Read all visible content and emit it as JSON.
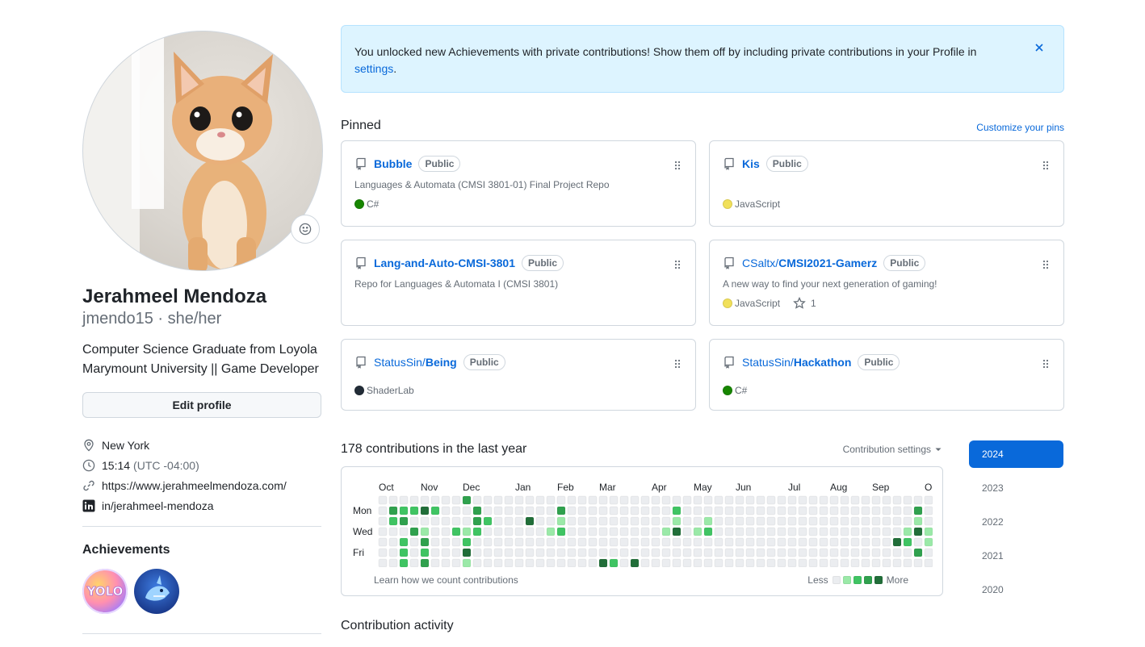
{
  "profile": {
    "name": "Jerahmeel Mendoza",
    "login": "jmendo15",
    "pronouns": "she/her",
    "bio": "Computer Science Graduate from Loyola Marymount University || Game Developer",
    "edit_label": "Edit profile",
    "location": "New York",
    "local_time": "15:14",
    "timezone": "(UTC -04:00)",
    "website": "https://www.jerahmeelmendoza.com/",
    "linkedin": "in/jerahmeel-mendoza",
    "achievements_title": "Achievements",
    "badges": [
      "yolo",
      "pull-shark"
    ]
  },
  "flash": {
    "message": "You unlocked new Achievements with private contributions! Show them off by including private contributions in your Profile in",
    "link": "settings",
    "suffix": "."
  },
  "pinned": {
    "title": "Pinned",
    "customize": "Customize your pins",
    "items": [
      {
        "owner": "",
        "name": "Bubble",
        "visibility": "Public",
        "description": "Languages & Automata (CMSI 3801-01) Final Project Repo",
        "language": "C#",
        "lang_color": "#178600",
        "stars": ""
      },
      {
        "owner": "",
        "name": "Kis",
        "visibility": "Public",
        "description": "",
        "language": "JavaScript",
        "lang_color": "#f1e05a",
        "stars": ""
      },
      {
        "owner": "",
        "name": "Lang-and-Auto-CMSI-3801",
        "visibility": "Public",
        "description": "Repo for Languages & Automata I (CMSI 3801)",
        "language": "",
        "lang_color": "",
        "stars": ""
      },
      {
        "owner": "CSaltx/",
        "name": "CMSI2021-Gamerz",
        "visibility": "Public",
        "description": "A new way to find your next generation of gaming!",
        "language": "JavaScript",
        "lang_color": "#f1e05a",
        "stars": "1"
      },
      {
        "owner": "StatusSin/",
        "name": "Being",
        "visibility": "Public",
        "description": "",
        "language": "ShaderLab",
        "lang_color": "#222c37",
        "stars": ""
      },
      {
        "owner": "StatusSin/",
        "name": "Hackathon",
        "visibility": "Public",
        "description": "",
        "language": "C#",
        "lang_color": "#178600",
        "stars": ""
      }
    ]
  },
  "contributions": {
    "title": "178 contributions in the last year",
    "settings_label": "Contribution settings",
    "months": [
      "Oct",
      "Nov",
      "Dec",
      "Jan",
      "Feb",
      "Mar",
      "Apr",
      "May",
      "Jun",
      "Jul",
      "Aug",
      "Sep",
      "Oct"
    ],
    "days": [
      "Mon",
      "Wed",
      "Fri"
    ],
    "learn_label": "Learn how we count contributions",
    "less_label": "Less",
    "more_label": "More",
    "colors": [
      "#ebedf0",
      "#9be9a8",
      "#40c463",
      "#30a14e",
      "#216e39"
    ],
    "levels": [
      [
        0,
        0,
        0,
        0,
        0,
        0,
        0
      ],
      [
        0,
        3,
        2,
        0,
        0,
        0,
        0
      ],
      [
        0,
        2,
        3,
        0,
        2,
        2,
        2
      ],
      [
        0,
        2,
        0,
        3,
        0,
        0,
        0
      ],
      [
        0,
        4,
        0,
        1,
        3,
        2,
        3
      ],
      [
        0,
        2,
        0,
        0,
        0,
        0,
        0
      ],
      [
        0,
        0,
        0,
        0,
        0,
        0,
        0
      ],
      [
        0,
        0,
        0,
        2,
        0,
        0,
        0
      ],
      [
        3,
        0,
        0,
        1,
        2,
        4,
        1
      ],
      [
        0,
        3,
        3,
        2,
        0,
        0,
        0
      ],
      [
        0,
        0,
        2,
        0,
        0,
        0,
        0
      ],
      [
        0,
        0,
        0,
        0,
        0,
        0,
        0
      ],
      [
        0,
        0,
        0,
        0,
        0,
        0,
        0
      ],
      [
        0,
        0,
        0,
        0,
        0,
        0,
        0
      ],
      [
        0,
        0,
        4,
        0,
        0,
        0,
        0
      ],
      [
        0,
        0,
        0,
        0,
        0,
        0,
        0
      ],
      [
        0,
        0,
        0,
        1,
        0,
        0,
        0
      ],
      [
        0,
        3,
        1,
        2,
        0,
        0,
        0
      ],
      [
        0,
        0,
        0,
        0,
        0,
        0,
        0
      ],
      [
        0,
        0,
        0,
        0,
        0,
        0,
        0
      ],
      [
        0,
        0,
        0,
        0,
        0,
        0,
        0
      ],
      [
        0,
        0,
        0,
        0,
        0,
        0,
        4
      ],
      [
        0,
        0,
        0,
        0,
        0,
        0,
        2
      ],
      [
        0,
        0,
        0,
        0,
        0,
        0,
        0
      ],
      [
        0,
        0,
        0,
        0,
        0,
        0,
        4
      ],
      [
        0,
        0,
        0,
        0,
        0,
        0,
        0
      ],
      [
        0,
        0,
        0,
        0,
        0,
        0,
        0
      ],
      [
        0,
        0,
        0,
        1,
        0,
        0,
        0
      ],
      [
        0,
        2,
        1,
        4,
        0,
        0,
        0
      ],
      [
        0,
        0,
        0,
        0,
        0,
        0,
        0
      ],
      [
        0,
        0,
        0,
        1,
        0,
        0,
        0
      ],
      [
        0,
        0,
        1,
        2,
        0,
        0,
        0
      ],
      [
        0,
        0,
        0,
        0,
        0,
        0,
        0
      ],
      [
        0,
        0,
        0,
        0,
        0,
        0,
        0
      ],
      [
        0,
        0,
        0,
        0,
        0,
        0,
        0
      ],
      [
        0,
        0,
        0,
        0,
        0,
        0,
        0
      ],
      [
        0,
        0,
        0,
        0,
        0,
        0,
        0
      ],
      [
        0,
        0,
        0,
        0,
        0,
        0,
        0
      ],
      [
        0,
        0,
        0,
        0,
        0,
        0,
        0
      ],
      [
        0,
        0,
        0,
        0,
        0,
        0,
        0
      ],
      [
        0,
        0,
        0,
        0,
        0,
        0,
        0
      ],
      [
        0,
        0,
        0,
        0,
        0,
        0,
        0
      ],
      [
        0,
        0,
        0,
        0,
        0,
        0,
        0
      ],
      [
        0,
        0,
        0,
        0,
        0,
        0,
        0
      ],
      [
        0,
        0,
        0,
        0,
        0,
        0,
        0
      ],
      [
        0,
        0,
        0,
        0,
        0,
        0,
        0
      ],
      [
        0,
        0,
        0,
        0,
        0,
        0,
        0
      ],
      [
        0,
        0,
        0,
        0,
        0,
        0,
        0
      ],
      [
        0,
        0,
        0,
        0,
        0,
        0,
        0
      ],
      [
        0,
        0,
        0,
        0,
        4,
        0,
        0
      ],
      [
        0,
        0,
        0,
        1,
        2,
        0,
        0
      ],
      [
        0,
        3,
        1,
        4,
        0,
        3,
        0
      ],
      [
        0,
        0,
        0,
        1,
        1,
        0,
        0
      ],
      [
        0,
        0,
        0,
        0,
        0,
        0,
        0
      ],
      [
        0,
        4,
        0,
        2,
        0,
        0,
        0
      ]
    ]
  },
  "activity_title": "Contribution activity",
  "years": [
    "2024",
    "2023",
    "2022",
    "2021",
    "2020"
  ],
  "active_year": "2024"
}
